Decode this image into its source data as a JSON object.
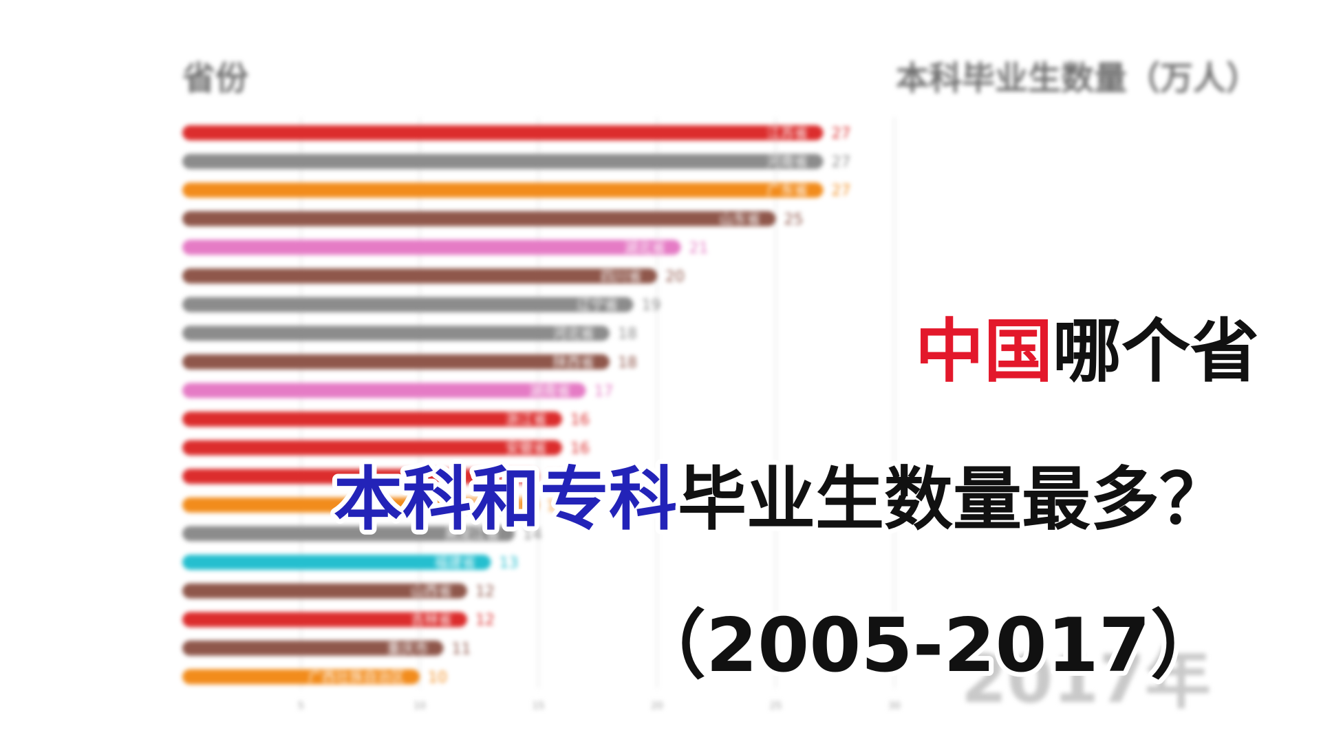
{
  "header": {
    "left": "省份",
    "right": "本科毕业生数量（万人）"
  },
  "year_watermark": "2017年",
  "headline": {
    "line1": [
      {
        "text": "中国",
        "color": "#e3182b"
      },
      {
        "text": "哪个省",
        "color": "#111111"
      }
    ],
    "line2": [
      {
        "text": "本科和专科",
        "color": "#2323b8"
      },
      {
        "text": "毕业生数量最多？",
        "color": "#111111"
      }
    ],
    "line3": [
      {
        "text": "（2005-2017）",
        "color": "#111111"
      }
    ]
  },
  "chart_data": {
    "type": "bar",
    "orientation": "horizontal",
    "title": "",
    "ylabel": "省份",
    "xlabel": "本科毕业生数量（万人）",
    "xlim": [
      0,
      34
    ],
    "xticks": [
      5,
      10,
      15,
      20,
      25,
      30
    ],
    "grid": true,
    "categories": [
      "江苏省",
      "河南省",
      "广东省",
      "山东省",
      "湖北省",
      "四川省",
      "辽宁省",
      "河北省",
      "陕西省",
      "湖南省",
      "浙江省",
      "安徽省",
      "江西省",
      "广西壮族自治区",
      "黑龙江省",
      "福建省",
      "山西省",
      "吉林省",
      "重庆市",
      "广西壮族自治区"
    ],
    "values": [
      27,
      27,
      27,
      25,
      21,
      20,
      19,
      18,
      18,
      17,
      16,
      16,
      15,
      15,
      14,
      13,
      12,
      12,
      11,
      10
    ],
    "colors": [
      "#dc2d2d",
      "#8c8c8c",
      "#f28c1c",
      "#8f574b",
      "#e57bc5",
      "#8f574b",
      "#8c8c8c",
      "#8c8c8c",
      "#8f574b",
      "#e57bc5",
      "#dc2d2d",
      "#dc2d2d",
      "#dc2d2d",
      "#f28c1c",
      "#8c8c8c",
      "#25bfcf",
      "#8f574b",
      "#dc2d2d",
      "#8f574b",
      "#f28c1c"
    ]
  }
}
